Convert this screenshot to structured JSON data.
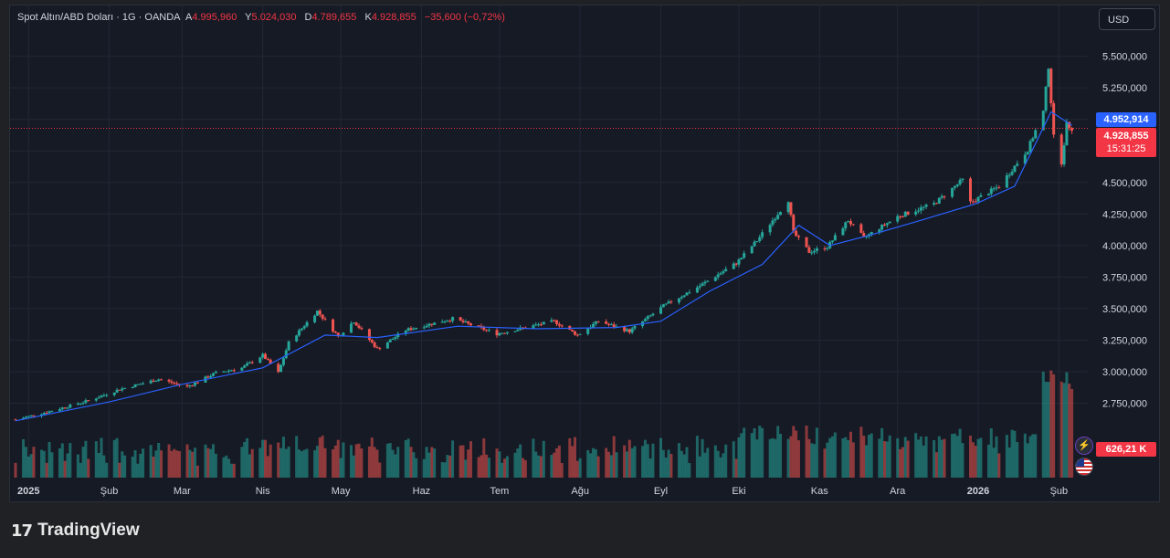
{
  "legend": {
    "symbol": "Spot Altın/ABD Doları · 1G · OANDA",
    "open_label": "A",
    "open": "4.995,960",
    "high_label": "Y",
    "high": "5.024,030",
    "low_label": "D",
    "low": "4.789,655",
    "close_label": "K",
    "close": "4.928,855",
    "change": "−35,600 (−0,72%)"
  },
  "currency_button": "USD",
  "price_tags": {
    "ma": "4.952,914",
    "last_price": "4.928,855",
    "countdown": "15:31:25",
    "volume": "626,21 K"
  },
  "brand": {
    "name": "TradingView"
  },
  "colors": {
    "up": "#26a69a",
    "down": "#ef5350",
    "ma": "#2962ff",
    "background": "#161a25"
  },
  "chart_data": {
    "type": "candlestick",
    "y_axis": {
      "ticks": [
        5500000,
        5250000,
        5000000,
        4750000,
        4500000,
        4250000,
        4000000,
        3750000,
        3500000,
        3250000,
        3000000,
        2750000
      ],
      "tick_labels": [
        "5.500,000",
        "5.250,000",
        "5.000,000",
        "4.750,000",
        "4.500,000",
        "4.250,000",
        "4.000,000",
        "3.750,000",
        "3.500,000",
        "3.250,000",
        "3.000,000",
        "2.750,000"
      ],
      "range": [
        2500000,
        5700000
      ]
    },
    "x_axis": {
      "labels": [
        "2025",
        "Şub",
        "Mar",
        "Nis",
        "May",
        "Haz",
        "Tem",
        "Ağu",
        "Eyl",
        "Eki",
        "Kas",
        "Ara",
        "2026",
        "Şub"
      ],
      "label_dates": [
        "2025-01-01",
        "2025-02-01",
        "2025-03-01",
        "2025-04-01",
        "2025-05-01",
        "2025-06-01",
        "2025-07-01",
        "2025-08-01",
        "2025-09-01",
        "2025-10-01",
        "2025-11-01",
        "2025-12-01",
        "2026-01-01",
        "2026-02-01"
      ],
      "range": [
        "2024-12-27",
        "2026-02-10"
      ]
    },
    "close_series": [
      [
        "2024-12-27",
        2620000
      ],
      [
        "2025-01-10",
        2690000
      ],
      [
        "2025-01-24",
        2770000
      ],
      [
        "2025-02-05",
        2860000
      ],
      [
        "2025-02-20",
        2940000
      ],
      [
        "2025-03-03",
        2880000
      ],
      [
        "2025-03-14",
        2990000
      ],
      [
        "2025-03-24",
        3030000
      ],
      [
        "2025-04-01",
        3130000
      ],
      [
        "2025-04-07",
        2990000
      ],
      [
        "2025-04-11",
        3230000
      ],
      [
        "2025-04-22",
        3480000
      ],
      [
        "2025-04-30",
        3280000
      ],
      [
        "2025-05-06",
        3400000
      ],
      [
        "2025-05-15",
        3180000
      ],
      [
        "2025-05-26",
        3330000
      ],
      [
        "2025-06-13",
        3420000
      ],
      [
        "2025-06-30",
        3300000
      ],
      [
        "2025-07-22",
        3400000
      ],
      [
        "2025-07-31",
        3290000
      ],
      [
        "2025-08-08",
        3400000
      ],
      [
        "2025-08-20",
        3320000
      ],
      [
        "2025-09-02",
        3520000
      ],
      [
        "2025-09-16",
        3680000
      ],
      [
        "2025-09-30",
        3860000
      ],
      [
        "2025-10-08",
        4040000
      ],
      [
        "2025-10-20",
        4360000
      ],
      [
        "2025-10-22",
        4100000
      ],
      [
        "2025-10-28",
        3950000
      ],
      [
        "2025-11-04",
        3990000
      ],
      [
        "2025-11-12",
        4200000
      ],
      [
        "2025-11-18",
        4060000
      ],
      [
        "2025-12-01",
        4230000
      ],
      [
        "2025-12-15",
        4330000
      ],
      [
        "2025-12-26",
        4520000
      ],
      [
        "2025-12-29",
        4340000
      ],
      [
        "2026-01-09",
        4470000
      ],
      [
        "2026-01-20",
        4760000
      ],
      [
        "2026-01-26",
        5060000
      ],
      [
        "2026-01-28",
        5420000
      ],
      [
        "2026-01-30",
        4860000
      ],
      [
        "2026-02-02",
        4660000
      ],
      [
        "2026-02-04",
        4960000
      ],
      [
        "2026-02-06",
        4929000
      ]
    ],
    "ma_series": [
      [
        "2024-12-27",
        2610000
      ],
      [
        "2025-02-01",
        2760000
      ],
      [
        "2025-03-01",
        2900000
      ],
      [
        "2025-04-01",
        3030000
      ],
      [
        "2025-04-25",
        3290000
      ],
      [
        "2025-05-15",
        3270000
      ],
      [
        "2025-06-15",
        3360000
      ],
      [
        "2025-07-15",
        3340000
      ],
      [
        "2025-08-15",
        3350000
      ],
      [
        "2025-09-01",
        3400000
      ],
      [
        "2025-09-20",
        3640000
      ],
      [
        "2025-10-10",
        3850000
      ],
      [
        "2025-10-24",
        4160000
      ],
      [
        "2025-11-05",
        4000000
      ],
      [
        "2025-11-20",
        4080000
      ],
      [
        "2025-12-10",
        4200000
      ],
      [
        "2025-12-31",
        4330000
      ],
      [
        "2026-01-15",
        4470000
      ],
      [
        "2026-01-29",
        5060000
      ],
      [
        "2026-02-06",
        4953000
      ]
    ],
    "last_price": 4928855,
    "ma_value": 4952914,
    "volume_last": "626,21 K"
  }
}
